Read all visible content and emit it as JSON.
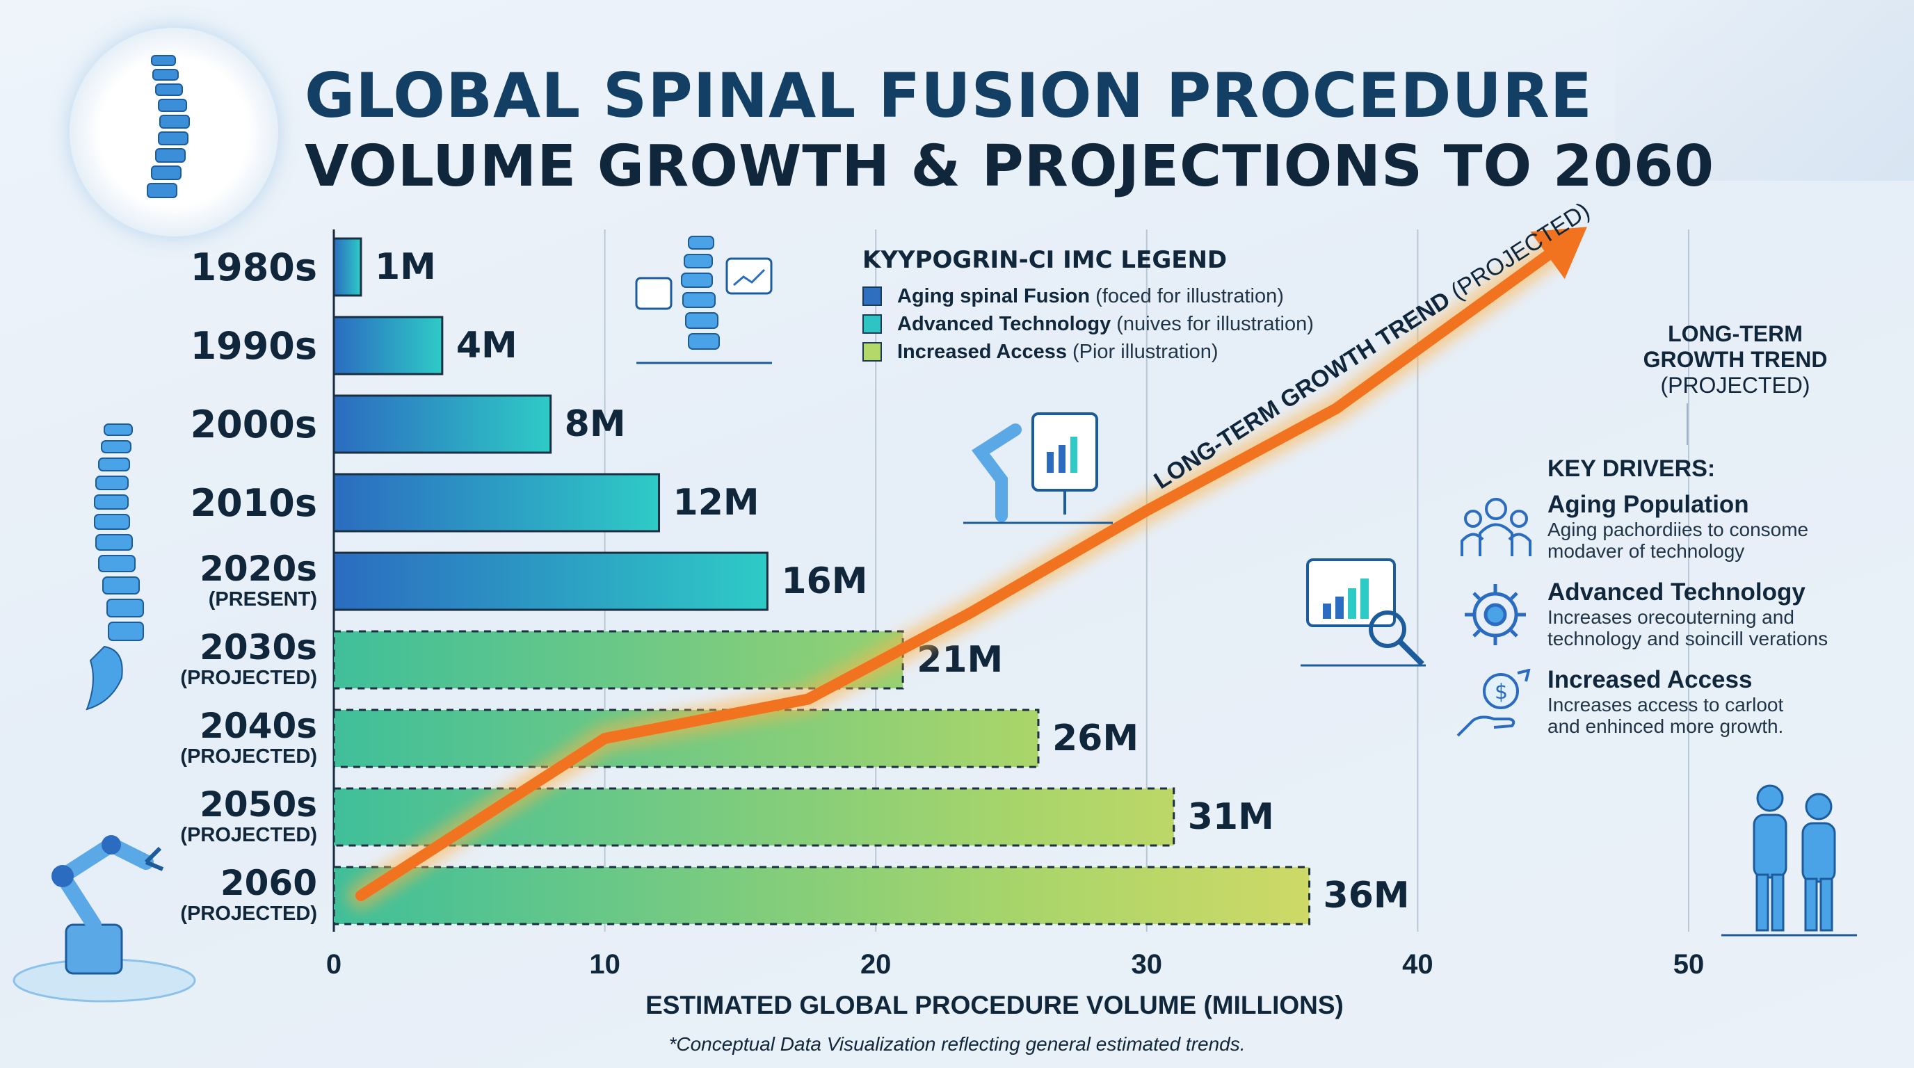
{
  "title": {
    "line1": "GLOBAL SPINAL FUSION PROCEDURE",
    "line2": "VOLUME GROWTH & PROJECTIONS TO 2060"
  },
  "chart_data": {
    "type": "bar",
    "orientation": "horizontal",
    "categories": [
      {
        "label": "1980s",
        "sublabel": "",
        "value": 1,
        "value_label": "1M",
        "status": "historical"
      },
      {
        "label": "1990s",
        "sublabel": "",
        "value": 4,
        "value_label": "4M",
        "status": "historical"
      },
      {
        "label": "2000s",
        "sublabel": "",
        "value": 8,
        "value_label": "8M",
        "status": "historical"
      },
      {
        "label": "2010s",
        "sublabel": "",
        "value": 12,
        "value_label": "12M",
        "status": "historical"
      },
      {
        "label": "2020s",
        "sublabel": "(PRESENT)",
        "value": 16,
        "value_label": "16M",
        "status": "historical"
      },
      {
        "label": "2030s",
        "sublabel": "(PROJECTED)",
        "value": 21,
        "value_label": "21M",
        "status": "projected"
      },
      {
        "label": "2040s",
        "sublabel": "(PROJECTED)",
        "value": 26,
        "value_label": "26M",
        "status": "projected"
      },
      {
        "label": "2050s",
        "sublabel": "(PROJECTED)",
        "value": 31,
        "value_label": "31M",
        "status": "projected"
      },
      {
        "label": "2060",
        "sublabel": "(PROJECTED)",
        "value": 36,
        "value_label": "36M",
        "status": "projected"
      }
    ],
    "xlabel": "ESTIMATED GLOBAL PROCEDURE VOLUME (MILLIONS)",
    "xlim": [
      0,
      50
    ],
    "xticks": [
      0,
      10,
      20,
      30,
      40,
      50
    ],
    "grid": "vertical-major",
    "trend_line": {
      "label": "LONG-TERM GROWTH TREND",
      "label_suffix": "(PROJECTED)",
      "points": [
        [
          1,
          0
        ],
        [
          10,
          2
        ],
        [
          17.5,
          2.5
        ],
        [
          23.5,
          3.6
        ],
        [
          30,
          4.9
        ],
        [
          37,
          6.2
        ],
        [
          45,
          8.2
        ]
      ]
    },
    "legend": {
      "title": "KYYPOGRIN-CI IMC LEGEND",
      "placement": "top-center",
      "items": [
        {
          "name": "Aging spinal Fusion",
          "note": "(foced for illustration)",
          "color": "#2f6fbf"
        },
        {
          "name": "Advanced Technology",
          "note": "(nuives for illustration)",
          "color": "#2ec4c4"
        },
        {
          "name": "Increased Access",
          "note": "(Pior illustration)",
          "color": "#b5d86a"
        }
      ]
    }
  },
  "trend_side_label": {
    "line1": "LONG-TERM",
    "line2": "GROWTH TREND",
    "line3": "(PROJECTED)"
  },
  "drivers": {
    "title": "KEY DRIVERS:",
    "items": [
      {
        "name": "Aging Population",
        "desc1": "Aging pachordiies to consome",
        "desc2": "modaver of technology",
        "icon": "people-icon"
      },
      {
        "name": "Advanced Technology",
        "desc1": "Increases orecouterning and",
        "desc2": "technology and soincill verations",
        "icon": "gear-icon"
      },
      {
        "name": "Increased Access",
        "desc1": "Increases access to carloot",
        "desc2": "and enhinced more growth.",
        "icon": "hand-dollar-icon"
      }
    ]
  },
  "colors": {
    "historical_start": "#2b6cc0",
    "historical_end": "#2ecbc6",
    "projected_start": "#3fbf9a",
    "projected_end": "#f3dd63",
    "trend": "#f2731f",
    "title": "#123f63"
  },
  "footnote": "*Conceptual Data Visualization reflecting general estimated trends."
}
